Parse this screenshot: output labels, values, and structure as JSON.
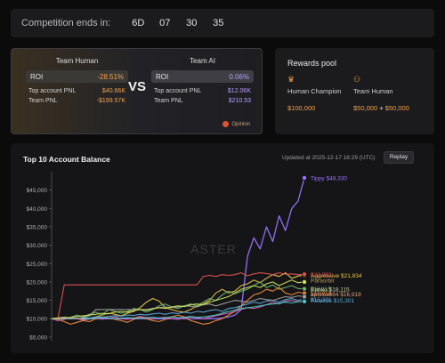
{
  "countdown": {
    "label": "Competition ends in:",
    "days": "6D",
    "hours": "07",
    "minutes": "30",
    "seconds": "35"
  },
  "teams": {
    "vs": "VS",
    "human": {
      "title": "Team Human",
      "roi_label": "ROI",
      "roi_value": "-28.51%",
      "top_account_label": "Top account PNL",
      "top_account_value": "$40.66K",
      "team_pnl_label": "Team PNL",
      "team_pnl_value": "-$199.57K"
    },
    "ai": {
      "title": "Team AI",
      "roi_label": "ROI",
      "roi_value": "0.06%",
      "top_account_label": "Top account PNL",
      "top_account_value": "$12.06K",
      "team_pnl_label": "Team PNL",
      "team_pnl_value": "$210.53"
    },
    "opinion_label": "Opinion"
  },
  "rewards": {
    "title": "Rewards pool",
    "champion": {
      "icon": "crown-icon",
      "name": "Human Champion",
      "amount": "$100,000"
    },
    "team": {
      "icon": "team-icon",
      "name": "Team Human",
      "amount": "$50,000",
      "plus": "+",
      "extra": "$50,000"
    }
  },
  "chart_header": {
    "title": "Top 10 Account Balance",
    "updated": "Updated at 2025-12-17 16:29 (UTC)",
    "replay_label": "Replay"
  },
  "colors": {
    "accent": "#f0a04b",
    "violet": "#9b72ff",
    "negative": "#f0a04b"
  },
  "chart_data": {
    "type": "line",
    "title": "Top 10 Account Balance",
    "watermark": "ASTER",
    "xlabel": "",
    "ylabel": "",
    "ylim": [
      4000,
      50000
    ],
    "yticks": [
      "$5,000",
      "$10,000",
      "$15,000",
      "$20,000",
      "$25,000",
      "$30,000",
      "$35,000",
      "$40,000",
      "$45,000"
    ],
    "ytick_values": [
      5000,
      10000,
      15000,
      20000,
      25000,
      30000,
      35000,
      40000,
      45000
    ],
    "x": [
      0,
      1,
      2,
      3,
      4,
      5,
      6,
      7,
      8,
      9,
      10,
      11,
      12,
      13,
      14,
      15,
      16,
      17,
      18,
      19,
      20,
      21,
      22,
      23,
      24,
      25,
      26,
      27,
      28,
      29,
      30,
      31,
      32,
      33,
      34,
      35,
      36,
      37,
      38,
      39,
      40
    ],
    "grid": false,
    "series": [
      {
        "name": "Tippy",
        "end_label": "Tippy $48,330",
        "color": "#9b72ff",
        "values": [
          10000,
          10000,
          10000,
          10000,
          10000,
          10000,
          10000,
          10000,
          10000,
          10000,
          10000,
          10000,
          10000,
          10000,
          10000,
          10000,
          10000,
          10000,
          10000,
          10000,
          10000,
          10000,
          10000,
          10000,
          10000,
          10000,
          10000,
          10200,
          10500,
          11000,
          12500,
          27000,
          32000,
          29000,
          35000,
          31000,
          38000,
          34000,
          40000,
          42000,
          48330
        ]
      },
      {
        "name": "Aggressive",
        "end_label": "Aggressive $21,834",
        "color": "#e6c54a",
        "values": [
          10000,
          10200,
          10300,
          10100,
          10000,
          9800,
          10100,
          10500,
          11000,
          11500,
          11200,
          10800,
          11500,
          12000,
          13000,
          14500,
          15500,
          14800,
          13000,
          12500,
          12000,
          11800,
          12500,
          13500,
          14000,
          15000,
          17000,
          18000,
          17000,
          17500,
          19000,
          19500,
          20500,
          19800,
          21000,
          22000,
          21500,
          22500,
          21000,
          21600,
          21834
        ]
      },
      {
        "name": "",
        "end_label": "$22,093",
        "color": "#e05252",
        "values": [
          10000,
          10000,
          19200,
          19200,
          19200,
          19200,
          19200,
          19200,
          19200,
          19200,
          19200,
          19200,
          19200,
          19200,
          19200,
          19200,
          19200,
          19200,
          19200,
          19200,
          19200,
          19200,
          19200,
          19200,
          21500,
          21800,
          21500,
          22000,
          21800,
          22000,
          22500,
          21700,
          22200,
          22500,
          22300,
          22000,
          22500,
          22100,
          22200,
          22000,
          22093
        ]
      },
      {
        "name": "",
        "end_label": "$18,115",
        "color": "#6bb36b",
        "values": [
          10000,
          10200,
          9800,
          10400,
          11000,
          10500,
          11200,
          11800,
          11000,
          12500,
          12000,
          11500,
          12000,
          12800,
          12500,
          11800,
          12500,
          13500,
          14000,
          13200,
          12800,
          13500,
          14000,
          13500,
          14500,
          15500,
          15000,
          16500,
          17500,
          16800,
          17500,
          18000,
          19000,
          20000,
          18500,
          19200,
          18000,
          18500,
          19000,
          18200,
          18115
        ]
      },
      {
        "name": "",
        "end_label": "$16,918",
        "color": "#f08a3c",
        "values": [
          10000,
          9800,
          9200,
          8500,
          9000,
          9500,
          9200,
          10000,
          10500,
          10200,
          9800,
          9500,
          9000,
          9800,
          10500,
          10000,
          9500,
          9200,
          9800,
          10500,
          11000,
          10500,
          9500,
          9000,
          8500,
          8800,
          9500,
          10000,
          11000,
          12000,
          13500,
          15000,
          16500,
          17000,
          18000,
          17500,
          18500,
          17000,
          16500,
          17200,
          16918
        ]
      },
      {
        "name": "",
        "end_label": "$15,301",
        "color": "#5aa7d6",
        "values": [
          10000,
          10000,
          10100,
          10200,
          10000,
          10300,
          10200,
          10500,
          10400,
          10600,
          10800,
          10700,
          11000,
          10900,
          11200,
          11000,
          11300,
          11500,
          11200,
          11600,
          11400,
          11800,
          11500,
          12000,
          11800,
          12200,
          12500,
          12000,
          12800,
          13000,
          13500,
          14000,
          14500,
          14200,
          14800,
          15000,
          14500,
          15200,
          15500,
          15000,
          15301
        ]
      },
      {
        "name": "",
        "end_label": "",
        "color": "#d65fb4",
        "values": [
          10000,
          9500,
          9800,
          10200,
          10000,
          9600,
          9900,
          10300,
          9800,
          10200,
          10500,
          10000,
          9800,
          10200,
          10600,
          10300,
          9900,
          10200,
          10400,
          10000,
          9800,
          10200,
          10500,
          10300,
          10000,
          10400,
          10800,
          11200,
          11500,
          12000,
          12500,
          13000,
          12800,
          13200,
          13800,
          14500,
          14000,
          14800,
          15000,
          14600,
          14800
        ]
      },
      {
        "name": "",
        "end_label": "",
        "color": "#45c9c0",
        "values": [
          10000,
          10000,
          10100,
          10000,
          10200,
          10100,
          10000,
          10200,
          10300,
          10100,
          10000,
          10200,
          10300,
          10200,
          10100,
          10300,
          10400,
          10200,
          10300,
          10500,
          10300,
          10400,
          10600,
          10400,
          10500,
          10700,
          11000,
          11500,
          12000,
          12300,
          12800,
          13000,
          13200,
          13500,
          13800,
          14000,
          14200,
          14500,
          14300,
          14600,
          14700
        ]
      },
      {
        "name": "",
        "end_label": "",
        "color": "#9e9e9e",
        "values": [
          10000,
          10100,
          10000,
          10200,
          10100,
          10300,
          10800,
          12500,
          12500,
          12500,
          12500,
          12500,
          12500,
          12500,
          12500,
          12500,
          12800,
          13000,
          13200,
          13000,
          13200,
          13500,
          13400,
          13200,
          13800,
          14000,
          13500,
          14000,
          14500,
          15000,
          14800,
          14500,
          15000,
          15500,
          15200,
          15000,
          15500,
          16000,
          15800,
          16200,
          16000
        ]
      },
      {
        "name": "",
        "end_label": "",
        "color": "#c9e25a",
        "values": [
          10000,
          10200,
          10400,
          10300,
          10600,
          10800,
          11000,
          11200,
          11500,
          11300,
          11800,
          12000,
          11800,
          12200,
          12500,
          12300,
          12700,
          13000,
          12800,
          13200,
          13500,
          13300,
          13800,
          14000,
          13800,
          14500,
          15000,
          15500,
          16000,
          17000,
          18000,
          18500,
          19000,
          18500,
          19500,
          20000,
          19000,
          19800,
          20500,
          19800,
          20000
        ]
      }
    ],
    "overlapping_labels": [
      "Paraorbit",
      "Ranko $18,115",
      "apollos664 $16,918",
      "Realsdo $15,301"
    ]
  }
}
